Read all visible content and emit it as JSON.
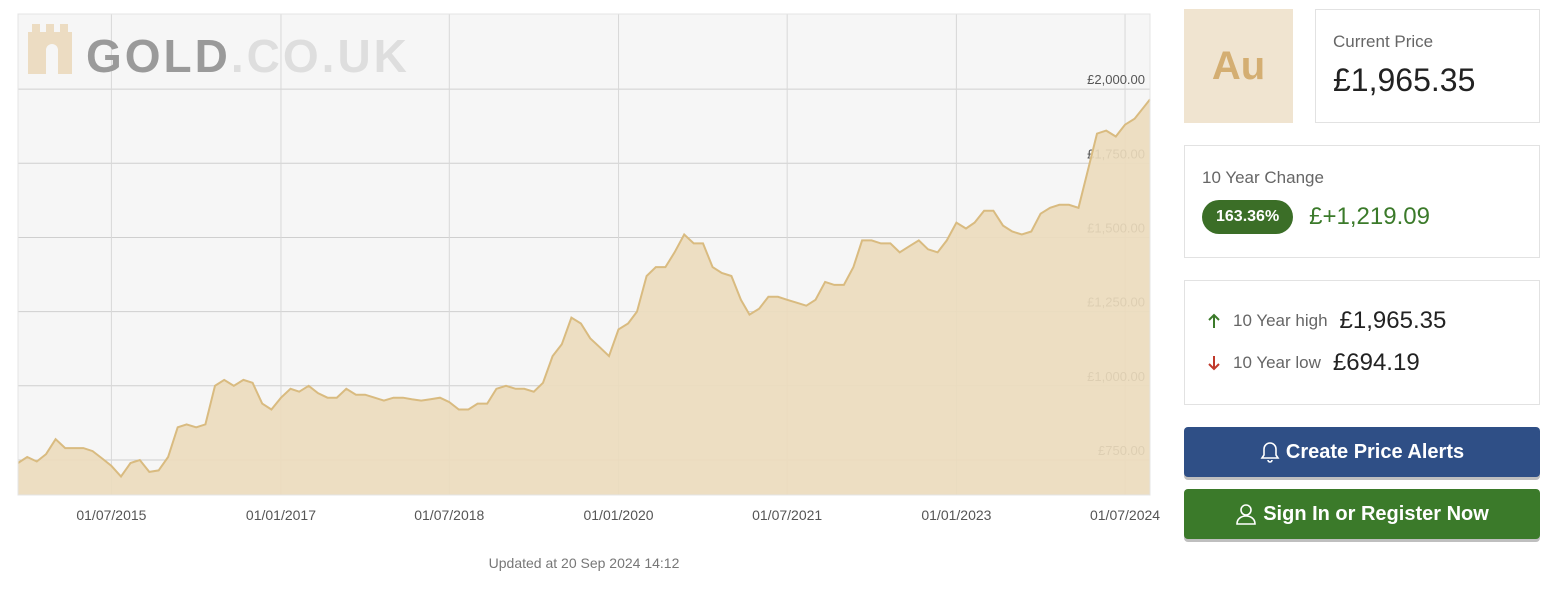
{
  "logo": {
    "name": "GOLD",
    "suffix": ".CO.UK"
  },
  "updated": "Updated at 20 Sep 2024 14:12",
  "price_panel": {
    "symbol": "Au",
    "label": "Current Price",
    "price": "£1,965.35"
  },
  "change_panel": {
    "label": "10 Year Change",
    "percent": "163.36%",
    "amount": "£+1,219.09"
  },
  "range_panel": {
    "high_label": "10 Year high",
    "high": "£1,965.35",
    "low_label": "10 Year low",
    "low": "£694.19"
  },
  "buttons": {
    "alerts": "Create Price Alerts",
    "signin": "Sign In or Register Now"
  },
  "chart_data": {
    "type": "area",
    "color": "#d9bb80",
    "fill": "#ecdcbd",
    "grid": true,
    "x": [
      "01/09/2014",
      "01/10/2014",
      "01/11/2014",
      "01/12/2014",
      "01/01/2015",
      "01/02/2015",
      "01/03/2015",
      "01/04/2015",
      "01/05/2015",
      "01/06/2015",
      "01/07/2015",
      "01/08/2015",
      "01/09/2015",
      "01/10/2015",
      "01/11/2015",
      "01/12/2015",
      "01/01/2016",
      "01/02/2016",
      "01/03/2016",
      "01/04/2016",
      "01/05/2016",
      "01/06/2016",
      "01/07/2016",
      "01/08/2016",
      "01/09/2016",
      "01/10/2016",
      "01/11/2016",
      "01/12/2016",
      "01/01/2017",
      "01/02/2017",
      "01/03/2017",
      "01/04/2017",
      "01/05/2017",
      "01/06/2017",
      "01/07/2017",
      "01/08/2017",
      "01/09/2017",
      "01/10/2017",
      "01/11/2017",
      "01/12/2017",
      "01/01/2018",
      "01/02/2018",
      "01/03/2018",
      "01/04/2018",
      "01/05/2018",
      "01/06/2018",
      "01/07/2018",
      "01/08/2018",
      "01/09/2018",
      "01/10/2018",
      "01/11/2018",
      "01/12/2018",
      "01/01/2019",
      "01/02/2019",
      "01/03/2019",
      "01/04/2019",
      "01/05/2019",
      "01/06/2019",
      "01/07/2019",
      "01/08/2019",
      "01/09/2019",
      "01/10/2019",
      "01/11/2019",
      "01/12/2019",
      "01/01/2020",
      "01/02/2020",
      "01/03/2020",
      "01/04/2020",
      "01/05/2020",
      "01/06/2020",
      "01/07/2020",
      "01/08/2020",
      "01/09/2020",
      "01/10/2020",
      "01/11/2020",
      "01/12/2020",
      "01/01/2021",
      "01/02/2021",
      "01/03/2021",
      "01/04/2021",
      "01/05/2021",
      "01/06/2021",
      "01/07/2021",
      "01/08/2021",
      "01/09/2021",
      "01/10/2021",
      "01/11/2021",
      "01/12/2021",
      "01/01/2022",
      "01/02/2022",
      "01/03/2022",
      "01/04/2022",
      "01/05/2022",
      "01/06/2022",
      "01/07/2022",
      "01/08/2022",
      "01/09/2022",
      "01/10/2022",
      "01/11/2022",
      "01/12/2022",
      "01/01/2023",
      "01/02/2023",
      "01/03/2023",
      "01/04/2023",
      "01/05/2023",
      "01/06/2023",
      "01/07/2023",
      "01/08/2023",
      "01/09/2023",
      "01/10/2023",
      "01/11/2023",
      "01/12/2023",
      "01/01/2024",
      "01/02/2024",
      "01/03/2024",
      "01/04/2024",
      "01/05/2024",
      "01/06/2024",
      "01/07/2024",
      "01/08/2024",
      "20/09/2024"
    ],
    "values": [
      740,
      760,
      745,
      770,
      820,
      790,
      790,
      790,
      780,
      755,
      730,
      694.19,
      740,
      750,
      710,
      715,
      760,
      860,
      870,
      860,
      870,
      1000,
      1020,
      1000,
      1020,
      1010,
      940,
      920,
      960,
      990,
      980,
      1000,
      975,
      960,
      960,
      990,
      970,
      970,
      960,
      950,
      960,
      960,
      955,
      950,
      955,
      960,
      945,
      920,
      920,
      940,
      940,
      990,
      1000,
      990,
      990,
      980,
      1010,
      1100,
      1140,
      1230,
      1210,
      1160,
      1130,
      1100,
      1190,
      1210,
      1250,
      1370,
      1400,
      1400,
      1450,
      1510,
      1480,
      1480,
      1400,
      1380,
      1370,
      1290,
      1240,
      1260,
      1300,
      1300,
      1290,
      1280,
      1270,
      1290,
      1350,
      1340,
      1340,
      1400,
      1490,
      1490,
      1480,
      1480,
      1450,
      1470,
      1490,
      1460,
      1450,
      1490,
      1550,
      1530,
      1550,
      1590,
      1590,
      1540,
      1520,
      1510,
      1520,
      1580,
      1600,
      1610,
      1610,
      1600,
      1720,
      1850,
      1860,
      1840,
      1880,
      1900,
      1965.35
    ],
    "xlim": [
      "01/09/2014",
      "20/09/2024"
    ],
    "xticks": [
      "01/07/2015",
      "01/01/2017",
      "01/07/2018",
      "01/01/2020",
      "01/07/2021",
      "01/01/2023",
      "01/07/2024"
    ],
    "ylim": [
      632,
      2253
    ],
    "yticks": [
      {
        "value": 750,
        "label": "£750.00"
      },
      {
        "value": 1000,
        "label": "£1,000.00"
      },
      {
        "value": 1250,
        "label": "£1,250.00"
      },
      {
        "value": 1500,
        "label": "£1,500.00"
      },
      {
        "value": 1750,
        "label": "£1,750.00"
      },
      {
        "value": 2000,
        "label": "£2,000.00"
      }
    ]
  }
}
